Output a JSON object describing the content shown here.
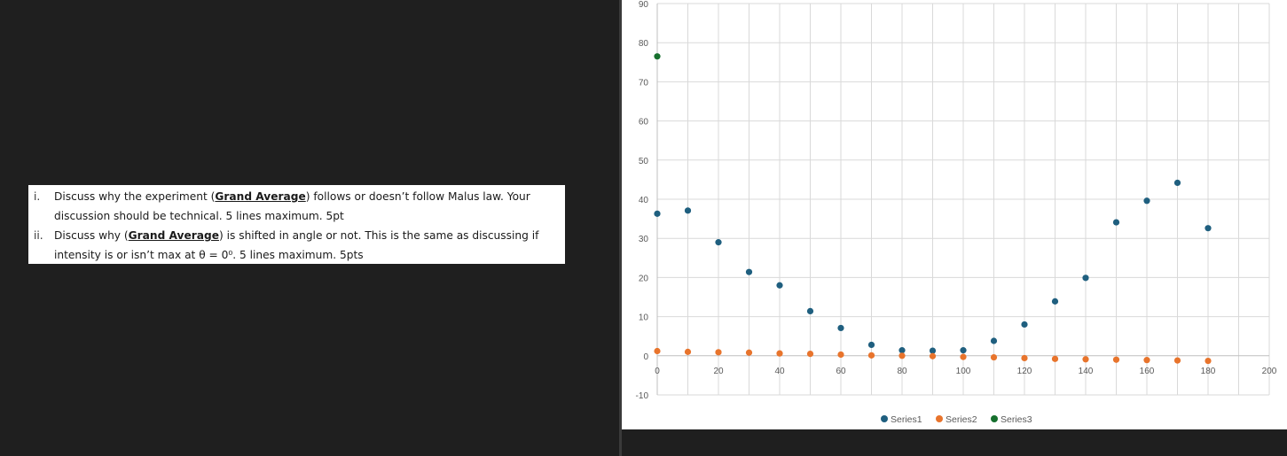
{
  "question": {
    "items": [
      {
        "num": "i.",
        "pre": "Discuss why the experiment (",
        "bold": "Grand Average",
        "post": ") follows or doesn’t follow Malus law.  Your discussion should be technical.  5 lines maximum.  5pt"
      },
      {
        "num": "ii.",
        "pre": "Discuss why (",
        "bold": "Grand Average",
        "post": ") is shifted in angle or not.  This is the same as discussing if intensity is or isn’t max at θ = 0⁰. 5 lines maximum. 5pts"
      }
    ]
  },
  "chart_data": {
    "type": "scatter",
    "xlim": [
      0,
      200
    ],
    "ylim": [
      -10,
      90
    ],
    "x_ticks": [
      0,
      20,
      40,
      60,
      80,
      100,
      120,
      140,
      160,
      180,
      200
    ],
    "y_ticks": [
      -10,
      0,
      10,
      20,
      30,
      40,
      50,
      60,
      70,
      80,
      90
    ],
    "grid": true,
    "legend_position": "bottom",
    "series": [
      {
        "name": "Series1",
        "color": "#1f5f7f",
        "points": [
          [
            0,
            36.3
          ],
          [
            10,
            37.1
          ],
          [
            20,
            29.0
          ],
          [
            30,
            21.4
          ],
          [
            40,
            18.0
          ],
          [
            50,
            11.4
          ],
          [
            60,
            7.1
          ],
          [
            70,
            2.8
          ],
          [
            80,
            1.4
          ],
          [
            90,
            1.3
          ],
          [
            100,
            1.4
          ],
          [
            110,
            3.8
          ],
          [
            120,
            8.0
          ],
          [
            130,
            13.9
          ],
          [
            140,
            19.9
          ],
          [
            150,
            34.1
          ],
          [
            160,
            39.6
          ],
          [
            170,
            44.2
          ],
          [
            180,
            32.6
          ]
        ]
      },
      {
        "name": "Series2",
        "color": "#e8742c",
        "points": [
          [
            0,
            1.2
          ],
          [
            10,
            1.0
          ],
          [
            20,
            0.9
          ],
          [
            30,
            0.8
          ],
          [
            40,
            0.6
          ],
          [
            50,
            0.5
          ],
          [
            60,
            0.3
          ],
          [
            70,
            0.1
          ],
          [
            80,
            0.0
          ],
          [
            90,
            -0.1
          ],
          [
            100,
            -0.3
          ],
          [
            110,
            -0.4
          ],
          [
            120,
            -0.6
          ],
          [
            130,
            -0.8
          ],
          [
            140,
            -0.9
          ],
          [
            150,
            -1.0
          ],
          [
            160,
            -1.1
          ],
          [
            170,
            -1.2
          ],
          [
            180,
            -1.3
          ]
        ]
      },
      {
        "name": "Series3",
        "color": "#16702e",
        "points": [
          [
            0,
            76.5
          ]
        ]
      }
    ]
  }
}
